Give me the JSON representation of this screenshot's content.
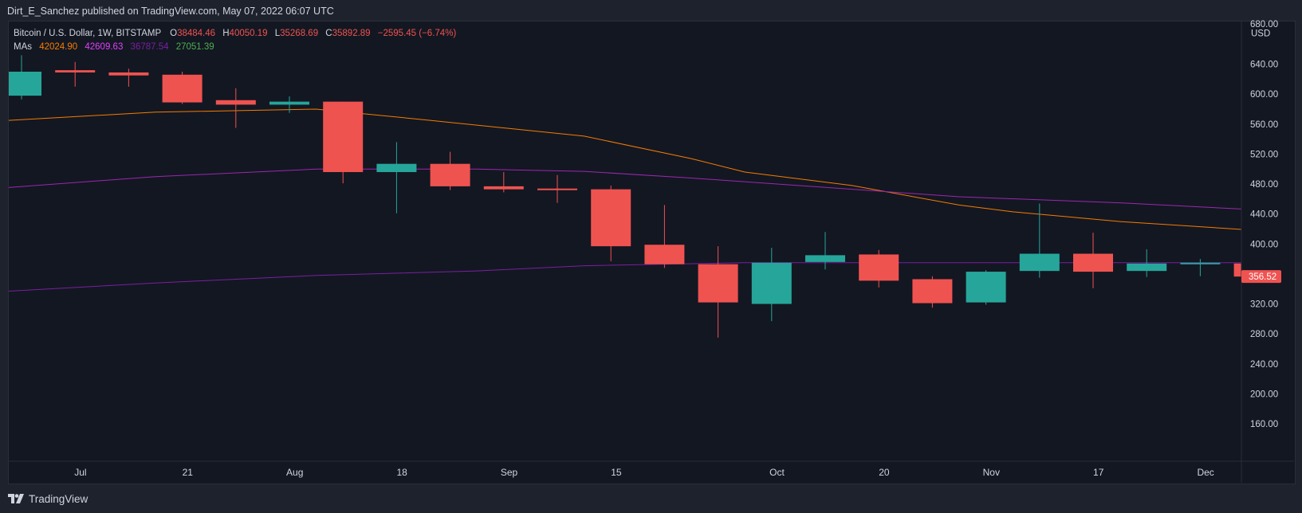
{
  "header": {
    "publisher_line": "Dirt_E_Sanchez published on TradingView.com, May 07, 2022 06:07 UTC"
  },
  "legend": {
    "symbol": "Bitcoin / U.S. Dollar, 1W, BITSTAMP",
    "o_label": "O",
    "o_value": "38484.46",
    "h_label": "H",
    "h_value": "40050.19",
    "l_label": "L",
    "l_value": "35268.69",
    "c_label": "C",
    "c_value": "35892.89",
    "change": "−2595.45 (−6.74%)",
    "mas_label": "MAs",
    "ma1": "42024.90",
    "ma2": "42609.63",
    "ma3": "36787.54",
    "ma4": "27051.39"
  },
  "colors": {
    "background": "#131722",
    "up": "#26a69a",
    "down": "#ef5350",
    "ma_orange": "#f57c00",
    "ma_purple": "#9c27b0",
    "ma_green": "#4caf50",
    "text": "#d1d4dc",
    "last_price_bg": "#ef5350"
  },
  "footer": {
    "brand": "TradingView"
  },
  "chart_data": {
    "type": "candlestick",
    "title": "Bitcoin / U.S. Dollar, 1W, BITSTAMP",
    "currency": "USD",
    "y_axis_ticks": [
      640,
      600,
      560,
      520,
      480,
      440,
      400,
      360,
      320,
      280,
      240,
      200,
      160
    ],
    "y_axis_tick_labels": [
      "640.00",
      "600.00",
      "560.00",
      "520.00",
      "480.00",
      "440.00",
      "400.00",
      "360.00",
      "320.00",
      "280.00",
      "240.00",
      "200.00",
      "160.00"
    ],
    "y_axis_top_partial_label": "680.00",
    "ylim": [
      110,
      697
    ],
    "x_axis_labels": [
      {
        "label": "Jul",
        "slot": 1.1
      },
      {
        "label": "21",
        "slot": 3.1
      },
      {
        "label": "Aug",
        "slot": 5.1
      },
      {
        "label": "18",
        "slot": 7.1
      },
      {
        "label": "Sep",
        "slot": 9.1
      },
      {
        "label": "15",
        "slot": 11.1
      },
      {
        "label": "Oct",
        "slot": 14.1
      },
      {
        "label": "20",
        "slot": 16.1
      },
      {
        "label": "Nov",
        "slot": 18.1
      },
      {
        "label": "17",
        "slot": 20.1
      },
      {
        "label": "Dec",
        "slot": 22.1
      }
    ],
    "last_price_label": "356.52",
    "candles": [
      {
        "o": 598,
        "h": 652,
        "l": 593,
        "c": 630
      },
      {
        "o": 632,
        "h": 643,
        "l": 610,
        "c": 629
      },
      {
        "o": 629,
        "h": 634,
        "l": 610,
        "c": 625
      },
      {
        "o": 626,
        "h": 630,
        "l": 587,
        "c": 589
      },
      {
        "o": 592,
        "h": 608,
        "l": 555,
        "c": 586
      },
      {
        "o": 586,
        "h": 597,
        "l": 575,
        "c": 590
      },
      {
        "o": 590,
        "h": 590,
        "l": 481,
        "c": 496
      },
      {
        "o": 496,
        "h": 536,
        "l": 441,
        "c": 507
      },
      {
        "o": 507,
        "h": 523,
        "l": 472,
        "c": 477
      },
      {
        "o": 477,
        "h": 496,
        "l": 469,
        "c": 473
      },
      {
        "o": 474,
        "h": 492,
        "l": 455,
        "c": 472
      },
      {
        "o": 473,
        "h": 478,
        "l": 377,
        "c": 397
      },
      {
        "o": 399,
        "h": 452,
        "l": 368,
        "c": 373
      },
      {
        "o": 373,
        "h": 397,
        "l": 275,
        "c": 322
      },
      {
        "o": 320,
        "h": 395,
        "l": 297,
        "c": 375
      },
      {
        "o": 376,
        "h": 416,
        "l": 366,
        "c": 385
      },
      {
        "o": 386,
        "h": 392,
        "l": 342,
        "c": 351
      },
      {
        "o": 353,
        "h": 357,
        "l": 315,
        "c": 321
      },
      {
        "o": 322,
        "h": 365,
        "l": 319,
        "c": 363
      },
      {
        "o": 364,
        "h": 454,
        "l": 355,
        "c": 387
      },
      {
        "o": 387,
        "h": 415,
        "l": 341,
        "c": 363
      },
      {
        "o": 364,
        "h": 393,
        "l": 356,
        "c": 374
      },
      {
        "o": 374,
        "h": 380,
        "l": 357,
        "c": 375
      },
      {
        "o": 374,
        "h": 378,
        "l": 355,
        "c": 356.52
      }
    ],
    "moving_averages": [
      {
        "name": "MA1",
        "color": "#f57c00",
        "x": [
          -0.5,
          2.5,
          5.5,
          7.5,
          10.5,
          12.5,
          13.5,
          15.5,
          17.5,
          18.5,
          20.5,
          23.5
        ],
        "y": [
          564,
          576,
          580,
          566,
          544,
          514,
          496,
          478,
          452,
          443,
          430,
          416
        ]
      },
      {
        "name": "MA2",
        "color": "#9c27b0",
        "x": [
          -0.5,
          2.5,
          5.5,
          8.5,
          10.5,
          12.5,
          14.5,
          17.5,
          20.5,
          23.5
        ],
        "y": [
          474,
          490,
          500,
          500,
          497,
          488,
          478,
          463,
          455,
          444
        ]
      },
      {
        "name": "MA3",
        "color": "#7b1fa2",
        "x": [
          -0.5,
          2.5,
          5.5,
          8.5,
          10.5,
          13.5,
          17.5,
          20.5,
          23.5
        ],
        "y": [
          336,
          348,
          358,
          364,
          371,
          375,
          375,
          375,
          375
        ]
      }
    ]
  }
}
